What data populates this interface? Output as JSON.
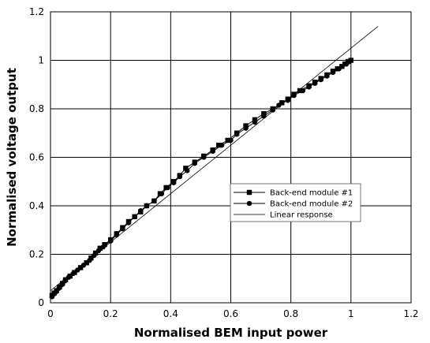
{
  "chart_data": {
    "type": "scatter",
    "title": "",
    "xlabel": "Normalised BEM input power",
    "ylabel": "Normalised voltage output",
    "xlim": [
      0,
      1.2
    ],
    "ylim": [
      0,
      1.2
    ],
    "xticks": [
      "0",
      "0.2",
      "0.4",
      "0.6",
      "0.8",
      "1",
      "1.2"
    ],
    "yticks": [
      "0",
      "0.2",
      "0.4",
      "0.6",
      "0.8",
      "1",
      "1.2"
    ],
    "grid": "major gridlines on both axes",
    "legend_position": "center-right",
    "series": [
      {
        "name": "Back-end module #1",
        "marker": "square",
        "color": "#000000",
        "points": [
          [
            0.005,
            0.03
          ],
          [
            0.012,
            0.04
          ],
          [
            0.02,
            0.05
          ],
          [
            0.03,
            0.065
          ],
          [
            0.04,
            0.08
          ],
          [
            0.05,
            0.095
          ],
          [
            0.065,
            0.11
          ],
          [
            0.08,
            0.125
          ],
          [
            0.1,
            0.145
          ],
          [
            0.12,
            0.165
          ],
          [
            0.135,
            0.185
          ],
          [
            0.15,
            0.205
          ],
          [
            0.165,
            0.225
          ],
          [
            0.18,
            0.24
          ],
          [
            0.2,
            0.26
          ],
          [
            0.22,
            0.285
          ],
          [
            0.24,
            0.31
          ],
          [
            0.26,
            0.335
          ],
          [
            0.28,
            0.355
          ],
          [
            0.3,
            0.375
          ],
          [
            0.32,
            0.4
          ],
          [
            0.345,
            0.42
          ],
          [
            0.365,
            0.45
          ],
          [
            0.385,
            0.475
          ],
          [
            0.41,
            0.5
          ],
          [
            0.43,
            0.525
          ],
          [
            0.45,
            0.555
          ],
          [
            0.48,
            0.58
          ],
          [
            0.51,
            0.605
          ],
          [
            0.54,
            0.63
          ],
          [
            0.56,
            0.65
          ],
          [
            0.59,
            0.67
          ],
          [
            0.62,
            0.7
          ],
          [
            0.65,
            0.73
          ],
          [
            0.68,
            0.755
          ],
          [
            0.71,
            0.78
          ],
          [
            0.74,
            0.8
          ],
          [
            0.77,
            0.825
          ],
          [
            0.79,
            0.84
          ],
          [
            0.81,
            0.86
          ],
          [
            0.83,
            0.875
          ],
          [
            0.86,
            0.895
          ],
          [
            0.88,
            0.91
          ],
          [
            0.9,
            0.925
          ],
          [
            0.92,
            0.94
          ],
          [
            0.94,
            0.955
          ],
          [
            0.955,
            0.965
          ],
          [
            0.97,
            0.975
          ],
          [
            0.98,
            0.985
          ],
          [
            0.99,
            0.995
          ],
          [
            1.0,
            1.0
          ]
        ]
      },
      {
        "name": "Back-end module #2",
        "marker": "circle",
        "color": "#000000",
        "points": [
          [
            0.005,
            0.025
          ],
          [
            0.01,
            0.035
          ],
          [
            0.018,
            0.045
          ],
          [
            0.028,
            0.06
          ],
          [
            0.038,
            0.075
          ],
          [
            0.048,
            0.09
          ],
          [
            0.06,
            0.105
          ],
          [
            0.075,
            0.12
          ],
          [
            0.09,
            0.135
          ],
          [
            0.11,
            0.155
          ],
          [
            0.13,
            0.175
          ],
          [
            0.145,
            0.195
          ],
          [
            0.16,
            0.215
          ],
          [
            0.175,
            0.23
          ],
          [
            0.2,
            0.255
          ],
          [
            0.22,
            0.28
          ],
          [
            0.24,
            0.305
          ],
          [
            0.26,
            0.33
          ],
          [
            0.28,
            0.355
          ],
          [
            0.3,
            0.38
          ],
          [
            0.32,
            0.4
          ],
          [
            0.345,
            0.42
          ],
          [
            0.37,
            0.45
          ],
          [
            0.39,
            0.475
          ],
          [
            0.41,
            0.495
          ],
          [
            0.43,
            0.52
          ],
          [
            0.455,
            0.545
          ],
          [
            0.48,
            0.575
          ],
          [
            0.51,
            0.6
          ],
          [
            0.54,
            0.625
          ],
          [
            0.57,
            0.65
          ],
          [
            0.6,
            0.67
          ],
          [
            0.62,
            0.695
          ],
          [
            0.65,
            0.72
          ],
          [
            0.68,
            0.745
          ],
          [
            0.71,
            0.77
          ],
          [
            0.74,
            0.795
          ],
          [
            0.76,
            0.815
          ],
          [
            0.79,
            0.835
          ],
          [
            0.81,
            0.855
          ],
          [
            0.84,
            0.875
          ],
          [
            0.86,
            0.89
          ],
          [
            0.88,
            0.905
          ],
          [
            0.9,
            0.92
          ],
          [
            0.92,
            0.935
          ],
          [
            0.94,
            0.95
          ],
          [
            0.96,
            0.965
          ],
          [
            0.97,
            0.975
          ],
          [
            0.985,
            0.985
          ],
          [
            0.995,
            0.995
          ],
          [
            1.0,
            1.0
          ]
        ]
      },
      {
        "name": "Linear response",
        "marker": "none",
        "color": "#000000",
        "line": [
          [
            0,
            0.05
          ],
          [
            1.09,
            1.14
          ]
        ]
      }
    ]
  }
}
